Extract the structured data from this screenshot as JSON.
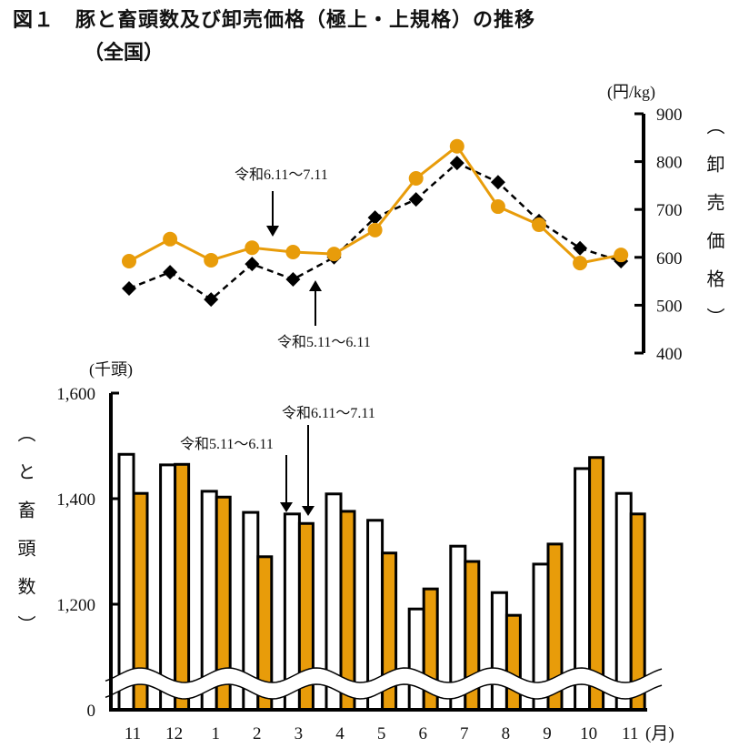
{
  "title": "図１　豚と畜頭数及び卸売価格（極上・上規格）の推移",
  "subtitle": "（全国）",
  "colors": {
    "current": "#E89C0A",
    "previous_line": "#000000",
    "previous_bar": "#FFFFFF"
  },
  "chart_data": [
    {
      "type": "line",
      "unit_label": "(円/kg)",
      "ylabel": "（卸売価格）",
      "ylim": [
        400,
        900
      ],
      "yticks": [
        "900",
        "800",
        "700",
        "600",
        "500",
        "400"
      ],
      "categories": [
        "11",
        "12",
        "1",
        "2",
        "3",
        "4",
        "5",
        "6",
        "7",
        "8",
        "9",
        "10",
        "11"
      ],
      "series": [
        {
          "name": "令和6.11～7.11",
          "style": "orange solid line with circles",
          "values": [
            592,
            638,
            594,
            620,
            611,
            607,
            657,
            765,
            832,
            706,
            668,
            588,
            605
          ]
        },
        {
          "name": "令和5.11～6.11",
          "style": "black dashed line with diamonds",
          "values": [
            535,
            569,
            512,
            586,
            554,
            600,
            683,
            721,
            797,
            757,
            676,
            619,
            592
          ]
        }
      ],
      "annotations": [
        "令和6.11～7.11",
        "令和5.11～6.11"
      ]
    },
    {
      "type": "bar",
      "unit_label": "(千頭)",
      "ylabel": "（と畜頭数）",
      "xlabel": "(月)",
      "ylim": [
        0,
        1600
      ],
      "axis_break": [
        0,
        1200
      ],
      "yticks": [
        "1,600",
        "1,400",
        "1,200",
        "0"
      ],
      "categories": [
        "11",
        "12",
        "1",
        "2",
        "3",
        "4",
        "5",
        "6",
        "7",
        "8",
        "9",
        "10",
        "11"
      ],
      "series": [
        {
          "name": "令和5.11～6.11",
          "style": "white bar",
          "values": [
            1484,
            1464,
            1414,
            1374,
            1371,
            1409,
            1359,
            1191,
            1310,
            1222,
            1276,
            1457,
            1410
          ]
        },
        {
          "name": "令和6.11～7.11",
          "style": "orange bar",
          "values": [
            1410,
            1465,
            1403,
            1290,
            1353,
            1376,
            1297,
            1229,
            1281,
            1179,
            1314,
            1478,
            1371
          ]
        }
      ],
      "annotations": [
        "令和5.11～6.11",
        "令和6.11～7.11"
      ]
    }
  ]
}
